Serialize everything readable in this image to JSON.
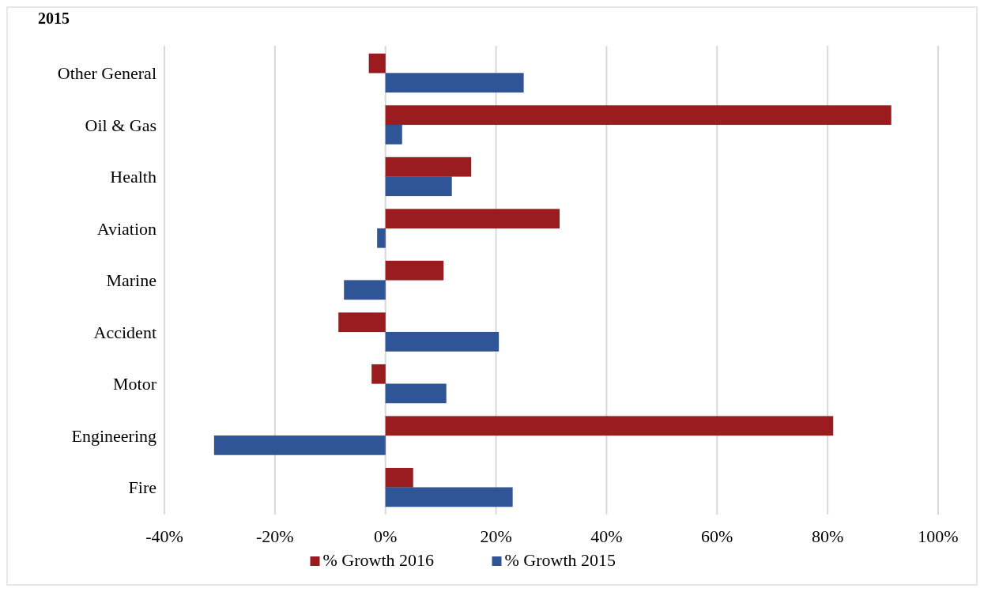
{
  "chart_data": {
    "type": "bar",
    "orientation": "horizontal",
    "title": "2015",
    "categories": [
      "Other General",
      "Oil & Gas",
      "Health",
      "Aviation",
      "Marine",
      "Accident",
      "Motor",
      "Engineering",
      "Fire"
    ],
    "series": [
      {
        "name": "% Growth 2016",
        "color": "#9b1c1f",
        "values": [
          -3,
          91.5,
          15.5,
          31.5,
          10.5,
          -8.5,
          -2.5,
          81,
          5
        ]
      },
      {
        "name": "% Growth 2015",
        "color": "#2f5597",
        "values": [
          25,
          3,
          12,
          -1.5,
          -7.5,
          20.5,
          11,
          -31,
          23
        ]
      }
    ],
    "xlim": [
      -40,
      100
    ],
    "xticks": [
      {
        "value": -40,
        "label": "-40%"
      },
      {
        "value": -20,
        "label": "-20%"
      },
      {
        "value": 0,
        "label": "0%"
      },
      {
        "value": 20,
        "label": "20%"
      },
      {
        "value": 40,
        "label": "40%"
      },
      {
        "value": 60,
        "label": "60%"
      },
      {
        "value": 80,
        "label": "80%"
      },
      {
        "value": 100,
        "label": "100%"
      }
    ],
    "grid": "x",
    "legend": "bottom"
  }
}
